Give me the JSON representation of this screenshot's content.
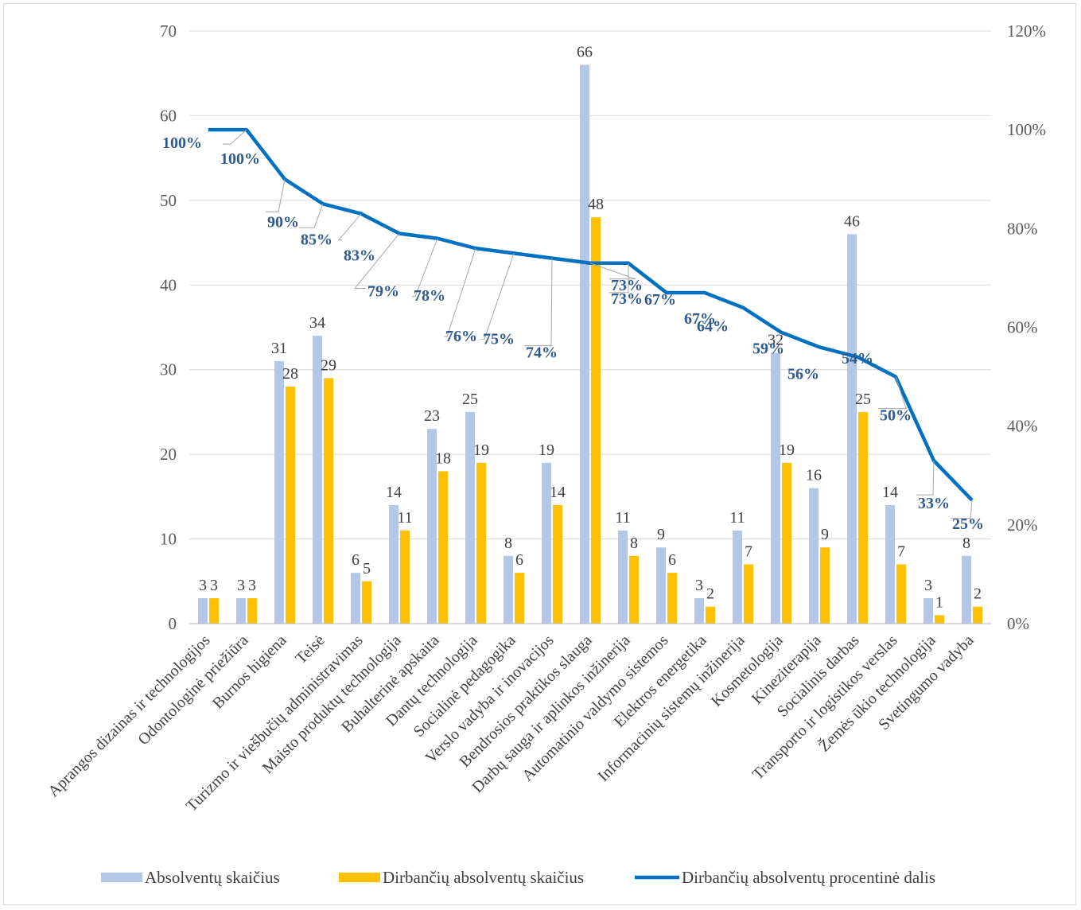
{
  "chart_data": {
    "type": "bar",
    "title": "",
    "xlabel": "",
    "ylabel": "",
    "ylim": [
      0,
      70
    ],
    "y_ticks": [
      "0",
      "10",
      "20",
      "30",
      "40",
      "50",
      "60",
      "70"
    ],
    "y2lim": [
      0,
      1.2
    ],
    "y2_ticks": [
      "0%",
      "20%",
      "40%",
      "60%",
      "80%",
      "100%",
      "120%"
    ],
    "grid": true,
    "legend_position": "bottom",
    "categories": [
      "Aprangos dizainas ir technologijos",
      "Odontologinė priežiūra",
      "Burnos higiena",
      "Teisė",
      "Turizmo ir viešbučių administravimas",
      "Maisto produktų technologija",
      "Buhalterinė apskaita",
      "Dantų technologija",
      "Socialinė pedagogika",
      "Verslo vadyba ir inovacijos",
      "Bendrosios praktikos slauga",
      "Darbų sauga ir aplinkos inžinerija",
      "Automatinio valdymo sistemos",
      "Elektros energetika",
      "Informacinių sistemų inžinerija",
      "Kosmetologija",
      "Kineziterapija",
      "Socialinis darbas",
      "Transporto ir logistikos verslas",
      "Žemės ūkio technologija",
      "Svetingumo vadyba"
    ],
    "series": [
      {
        "name": "Absolventų skaičius",
        "type": "bar",
        "axis": "left",
        "color": "#b4c7e7",
        "values": [
          3,
          3,
          31,
          34,
          6,
          14,
          23,
          25,
          8,
          19,
          66,
          11,
          9,
          3,
          11,
          32,
          16,
          46,
          14,
          3,
          8
        ],
        "labels": [
          "3",
          "3",
          "31",
          "34",
          "6",
          "14",
          "23",
          "25",
          "8",
          "19",
          "66",
          "11",
          "9",
          "3",
          "11",
          "32",
          "16",
          "46",
          "14",
          "3",
          "8"
        ]
      },
      {
        "name": "Dirbančių absolventų skaičius",
        "type": "bar",
        "axis": "left",
        "color": "#ffc000",
        "values": [
          3,
          3,
          28,
          29,
          5,
          11,
          18,
          19,
          6,
          14,
          48,
          8,
          6,
          2,
          7,
          19,
          9,
          25,
          7,
          1,
          2
        ],
        "labels": [
          "3",
          "3",
          "28",
          "29",
          "5",
          "11",
          "18",
          "19",
          "6",
          "14",
          "48",
          "8",
          "6",
          "2",
          "7",
          "19",
          "9",
          "25",
          "7",
          "1",
          "2"
        ]
      },
      {
        "name": "Dirbančių absolventų procentinė dalis",
        "type": "line",
        "axis": "right",
        "color": "#0070c0",
        "values": [
          1.0,
          1.0,
          0.9,
          0.85,
          0.83,
          0.79,
          0.78,
          0.76,
          0.75,
          0.74,
          0.73,
          0.73,
          0.67,
          0.67,
          0.64,
          0.59,
          0.56,
          0.54,
          0.5,
          0.33,
          0.25
        ],
        "labels": [
          "100%",
          "100%",
          "90%",
          "85%",
          "83%",
          "79%",
          "78%",
          "76%",
          "75%",
          "74%",
          "73%",
          "73%",
          "67%",
          "67%",
          "64%",
          "59%",
          "56%",
          "54%",
          "50%",
          "33%",
          "25%"
        ]
      }
    ]
  },
  "colors": {
    "bar_total": "#b4c7e7",
    "bar_employed": "#ffc000",
    "line_pct": "#0070c0",
    "pct_label": "#2e5a8e",
    "gridline": "#d9d9d9",
    "leader_line": "#a6a6a6"
  }
}
